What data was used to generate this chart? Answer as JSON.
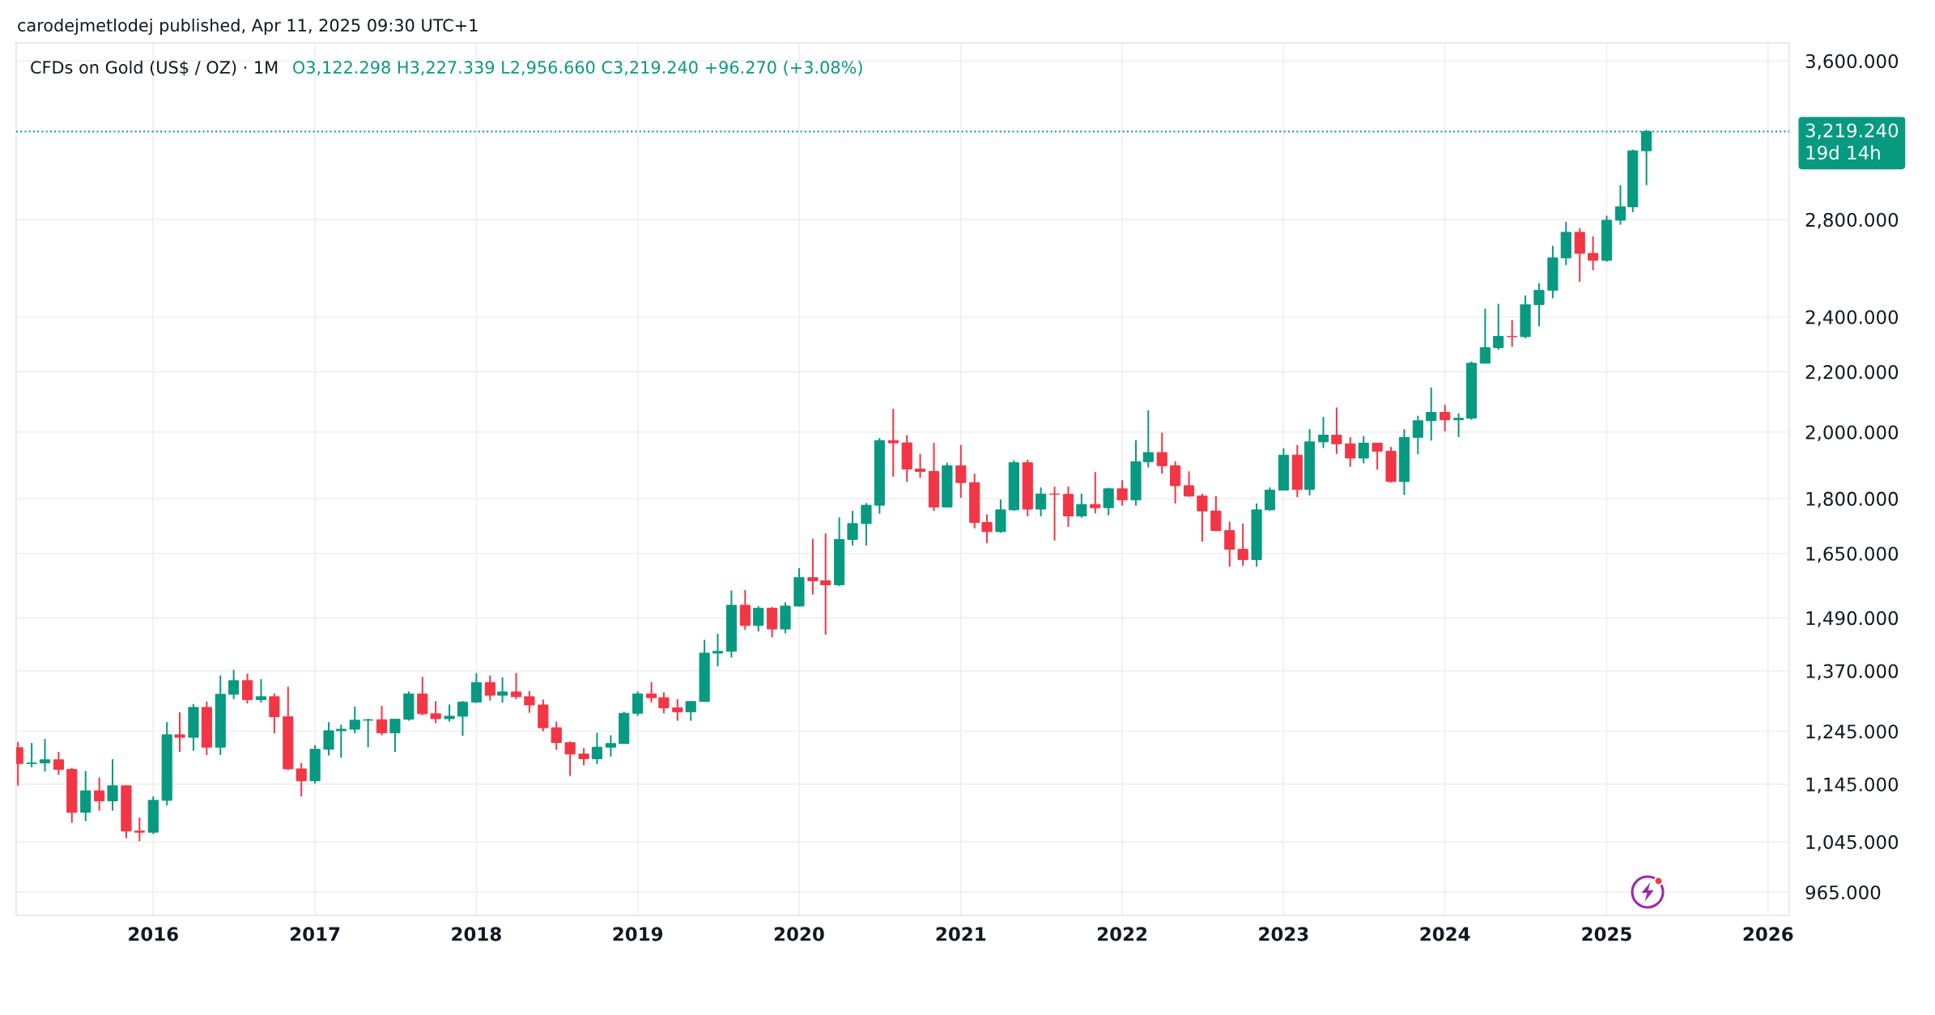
{
  "chart_data": {
    "type": "candlestick",
    "title": "CFDs on Gold (US$ / OZ) · 1M",
    "annotations": [
      "carodejmetlodej published, Apr 11, 2025 09:30 UTC+1",
      "O3,122.298 H3,227.339 L2,956.660 C3,219.240 +96.270 (+3.08%)"
    ],
    "x": [
      "2015-03",
      "2015-04",
      "2015-05",
      "2015-06",
      "2015-07",
      "2015-08",
      "2015-09",
      "2015-10",
      "2015-11",
      "2015-12",
      "2016-01",
      "2016-02",
      "2016-03",
      "2016-04",
      "2016-05",
      "2016-06",
      "2016-07",
      "2016-08",
      "2016-09",
      "2016-10",
      "2016-11",
      "2016-12",
      "2017-01",
      "2017-02",
      "2017-03",
      "2017-04",
      "2017-05",
      "2017-06",
      "2017-07",
      "2017-08",
      "2017-09",
      "2017-10",
      "2017-11",
      "2017-12",
      "2018-01",
      "2018-02",
      "2018-03",
      "2018-04",
      "2018-05",
      "2018-06",
      "2018-07",
      "2018-08",
      "2018-09",
      "2018-10",
      "2018-11",
      "2018-12",
      "2019-01",
      "2019-02",
      "2019-03",
      "2019-04",
      "2019-05",
      "2019-06",
      "2019-07",
      "2019-08",
      "2019-09",
      "2019-10",
      "2019-11",
      "2019-12",
      "2020-01",
      "2020-02",
      "2020-03",
      "2020-04",
      "2020-05",
      "2020-06",
      "2020-07",
      "2020-08",
      "2020-09",
      "2020-10",
      "2020-11",
      "2020-12",
      "2021-01",
      "2021-02",
      "2021-03",
      "2021-04",
      "2021-05",
      "2021-06",
      "2021-07",
      "2021-08",
      "2021-09",
      "2021-10",
      "2021-11",
      "2021-12",
      "2022-01",
      "2022-02",
      "2022-03",
      "2022-04",
      "2022-05",
      "2022-06",
      "2022-07",
      "2022-08",
      "2022-09",
      "2022-10",
      "2022-11",
      "2022-12",
      "2023-01",
      "2023-02",
      "2023-03",
      "2023-04",
      "2023-05",
      "2023-06",
      "2023-07",
      "2023-08",
      "2023-09",
      "2023-10",
      "2023-11",
      "2023-12",
      "2024-01",
      "2024-02",
      "2024-03",
      "2024-04",
      "2024-05",
      "2024-06",
      "2024-07",
      "2024-08",
      "2024-09",
      "2024-10",
      "2024-11",
      "2024-12",
      "2025-01",
      "2025-02",
      "2025-03",
      "2025-04"
    ],
    "ohlc": [
      [
        1213,
        1224,
        1142,
        1183
      ],
      [
        1183,
        1222,
        1176,
        1184
      ],
      [
        1184,
        1230,
        1168,
        1190
      ],
      [
        1190,
        1205,
        1162,
        1172
      ],
      [
        1172,
        1175,
        1077,
        1095
      ],
      [
        1095,
        1169,
        1080,
        1133
      ],
      [
        1133,
        1157,
        1098,
        1115
      ],
      [
        1115,
        1191,
        1098,
        1142
      ],
      [
        1142,
        1143,
        1051,
        1063
      ],
      [
        1063,
        1086,
        1046,
        1061
      ],
      [
        1061,
        1123,
        1058,
        1116
      ],
      [
        1116,
        1263,
        1107,
        1238
      ],
      [
        1238,
        1283,
        1205,
        1233
      ],
      [
        1233,
        1300,
        1207,
        1293
      ],
      [
        1293,
        1305,
        1199,
        1214
      ],
      [
        1214,
        1360,
        1199,
        1320
      ],
      [
        1320,
        1372,
        1310,
        1349
      ],
      [
        1349,
        1364,
        1301,
        1309
      ],
      [
        1309,
        1352,
        1303,
        1315
      ],
      [
        1315,
        1322,
        1241,
        1274
      ],
      [
        1274,
        1336,
        1171,
        1173
      ],
      [
        1173,
        1184,
        1123,
        1151
      ],
      [
        1151,
        1218,
        1146,
        1210
      ],
      [
        1210,
        1263,
        1198,
        1246
      ],
      [
        1246,
        1258,
        1194,
        1249
      ],
      [
        1249,
        1295,
        1241,
        1267
      ],
      [
        1267,
        1270,
        1214,
        1268
      ],
      [
        1268,
        1296,
        1237,
        1242
      ],
      [
        1242,
        1270,
        1205,
        1269
      ],
      [
        1269,
        1326,
        1266,
        1321
      ],
      [
        1321,
        1357,
        1277,
        1280
      ],
      [
        1280,
        1306,
        1261,
        1270
      ],
      [
        1270,
        1299,
        1264,
        1275
      ],
      [
        1275,
        1306,
        1236,
        1304
      ],
      [
        1304,
        1365,
        1302,
        1345
      ],
      [
        1345,
        1360,
        1307,
        1318
      ],
      [
        1318,
        1356,
        1303,
        1325
      ],
      [
        1325,
        1365,
        1310,
        1315
      ],
      [
        1315,
        1327,
        1282,
        1298
      ],
      [
        1298,
        1309,
        1245,
        1252
      ],
      [
        1252,
        1264,
        1209,
        1223
      ],
      [
        1223,
        1225,
        1160,
        1201
      ],
      [
        1201,
        1212,
        1180,
        1192
      ],
      [
        1192,
        1242,
        1182,
        1214
      ],
      [
        1214,
        1237,
        1196,
        1221
      ],
      [
        1221,
        1284,
        1221,
        1281
      ],
      [
        1281,
        1326,
        1276,
        1321
      ],
      [
        1321,
        1346,
        1303,
        1313
      ],
      [
        1313,
        1324,
        1281,
        1292
      ],
      [
        1292,
        1310,
        1266,
        1284
      ],
      [
        1284,
        1306,
        1266,
        1305
      ],
      [
        1305,
        1439,
        1305,
        1409
      ],
      [
        1409,
        1453,
        1380,
        1413
      ],
      [
        1413,
        1556,
        1399,
        1520
      ],
      [
        1520,
        1557,
        1462,
        1472
      ],
      [
        1472,
        1518,
        1458,
        1513
      ],
      [
        1513,
        1516,
        1445,
        1464
      ],
      [
        1464,
        1527,
        1454,
        1518
      ],
      [
        1518,
        1612,
        1517,
        1588
      ],
      [
        1588,
        1689,
        1546,
        1580
      ],
      [
        1580,
        1703,
        1451,
        1570
      ],
      [
        1570,
        1747,
        1567,
        1687
      ],
      [
        1687,
        1765,
        1671,
        1730
      ],
      [
        1730,
        1787,
        1671,
        1781
      ],
      [
        1781,
        1981,
        1757,
        1973
      ],
      [
        1973,
        2075,
        1863,
        1966
      ],
      [
        1966,
        1990,
        1848,
        1886
      ],
      [
        1886,
        1932,
        1860,
        1879
      ],
      [
        1879,
        1966,
        1765,
        1776
      ],
      [
        1776,
        1905,
        1775,
        1896
      ],
      [
        1896,
        1959,
        1802,
        1846
      ],
      [
        1846,
        1872,
        1717,
        1733
      ],
      [
        1733,
        1755,
        1677,
        1708
      ],
      [
        1708,
        1797,
        1705,
        1768
      ],
      [
        1768,
        1912,
        1765,
        1905
      ],
      [
        1905,
        1914,
        1750,
        1770
      ],
      [
        1770,
        1832,
        1750,
        1813
      ],
      [
        1813,
        1834,
        1684,
        1812
      ],
      [
        1812,
        1834,
        1721,
        1751
      ],
      [
        1751,
        1814,
        1746,
        1783
      ],
      [
        1783,
        1877,
        1758,
        1774
      ],
      [
        1774,
        1831,
        1753,
        1828
      ],
      [
        1828,
        1853,
        1780,
        1796
      ],
      [
        1796,
        1974,
        1780,
        1908
      ],
      [
        1908,
        2070,
        1891,
        1936
      ],
      [
        1936,
        1998,
        1872,
        1896
      ],
      [
        1896,
        1909,
        1786,
        1837
      ],
      [
        1837,
        1879,
        1805,
        1807
      ],
      [
        1807,
        1814,
        1681,
        1765
      ],
      [
        1765,
        1807,
        1709,
        1711
      ],
      [
        1711,
        1735,
        1616,
        1661
      ],
      [
        1661,
        1730,
        1618,
        1634
      ],
      [
        1634,
        1786,
        1616,
        1768
      ],
      [
        1768,
        1832,
        1765,
        1824
      ],
      [
        1824,
        1949,
        1823,
        1928
      ],
      [
        1928,
        1959,
        1804,
        1826
      ],
      [
        1826,
        2009,
        1809,
        1969
      ],
      [
        1969,
        2048,
        1950,
        1990
      ],
      [
        1990,
        2079,
        1932,
        1963
      ],
      [
        1963,
        1984,
        1893,
        1919
      ],
      [
        1919,
        1987,
        1903,
        1965
      ],
      [
        1965,
        1966,
        1884,
        1940
      ],
      [
        1940,
        1953,
        1846,
        1849
      ],
      [
        1849,
        2009,
        1810,
        1983
      ],
      [
        1983,
        2052,
        1931,
        2036
      ],
      [
        2036,
        2146,
        1973,
        2063
      ],
      [
        2063,
        2088,
        2002,
        2039
      ],
      [
        2039,
        2060,
        1984,
        2044
      ],
      [
        2044,
        2236,
        2039,
        2230
      ],
      [
        2230,
        2431,
        2229,
        2286
      ],
      [
        2286,
        2450,
        2278,
        2327
      ],
      [
        2327,
        2388,
        2289,
        2326
      ],
      [
        2326,
        2483,
        2320,
        2447
      ],
      [
        2447,
        2531,
        2365,
        2503
      ],
      [
        2503,
        2686,
        2472,
        2635
      ],
      [
        2635,
        2790,
        2605,
        2744
      ],
      [
        2744,
        2762,
        2537,
        2654
      ],
      [
        2654,
        2726,
        2584,
        2625
      ],
      [
        2625,
        2817,
        2619,
        2797
      ],
      [
        2797,
        2956,
        2777,
        2857
      ],
      [
        2857,
        3128,
        2833,
        3122.298
      ],
      [
        3122.298,
        3227.339,
        2956.66,
        3219.24
      ]
    ],
    "colors": [
      "#f23645",
      "#089981",
      "#089981",
      "#f23645",
      "#f23645",
      "#089981",
      "#f23645",
      "#089981",
      "#f23645",
      "#f23645",
      "#089981",
      "#089981",
      "#f23645",
      "#089981",
      "#f23645",
      "#089981",
      "#089981",
      "#f23645",
      "#089981",
      "#f23645",
      "#f23645",
      "#f23645",
      "#089981",
      "#089981",
      "#089981",
      "#089981",
      "#089981",
      "#f23645",
      "#089981",
      "#089981",
      "#f23645",
      "#f23645",
      "#089981",
      "#089981",
      "#089981",
      "#f23645",
      "#089981",
      "#f23645",
      "#f23645",
      "#f23645",
      "#f23645",
      "#f23645",
      "#f23645",
      "#089981",
      "#089981",
      "#089981",
      "#089981",
      "#f23645",
      "#f23645",
      "#f23645",
      "#089981",
      "#089981",
      "#089981",
      "#089981",
      "#f23645",
      "#089981",
      "#f23645",
      "#089981",
      "#089981",
      "#f23645",
      "#f23645",
      "#089981",
      "#089981",
      "#089981",
      "#089981",
      "#f23645",
      "#f23645",
      "#f23645",
      "#f23645",
      "#089981",
      "#f23645",
      "#f23645",
      "#f23645",
      "#089981",
      "#089981",
      "#f23645",
      "#089981",
      "#f23645",
      "#f23645",
      "#089981",
      "#f23645",
      "#089981",
      "#f23645",
      "#089981",
      "#089981",
      "#f23645",
      "#f23645",
      "#f23645",
      "#f23645",
      "#f23645",
      "#f23645",
      "#f23645",
      "#089981",
      "#089981",
      "#089981",
      "#f23645",
      "#089981",
      "#089981",
      "#f23645",
      "#f23645",
      "#089981",
      "#f23645",
      "#f23645",
      "#089981",
      "#089981",
      "#089981",
      "#f23645",
      "#089981",
      "#089981",
      "#089981",
      "#089981",
      "#f23645",
      "#089981",
      "#089981",
      "#089981",
      "#089981",
      "#f23645",
      "#f23645",
      "#089981",
      "#089981",
      "#089981",
      "#089981"
    ],
    "log": true,
    "xlim": [
      "2015-02-25",
      "2026-02-18"
    ],
    "xticks": [
      "2016",
      "2017",
      "2018",
      "2019",
      "2020",
      "2021",
      "2022",
      "2023",
      "2024",
      "2025",
      "2026"
    ],
    "ylim": [
      930,
      3704
    ],
    "yticks": [
      {
        "value": 965,
        "label": "965.000"
      },
      {
        "value": 1045,
        "label": "1,045.000"
      },
      {
        "value": 1145,
        "label": "1,145.000"
      },
      {
        "value": 1245,
        "label": "1,245.000"
      },
      {
        "value": 1370,
        "label": "1,370.000"
      },
      {
        "value": 1490,
        "label": "1,490.000"
      },
      {
        "value": 1650,
        "label": "1,650.000"
      },
      {
        "value": 1800,
        "label": "1,800.000"
      },
      {
        "value": 2000,
        "label": "2,000.000"
      },
      {
        "value": 2200,
        "label": "2,200.000"
      },
      {
        "value": 2400,
        "label": "2,400.000"
      },
      {
        "value": 2800,
        "label": "2,800.000"
      },
      {
        "value": 3600,
        "label": "3,600.000"
      }
    ],
    "grid": true,
    "ref_lines": [
      {
        "axis": "y",
        "value": 3219.24,
        "label": "3,219.240\n19d 14h",
        "color": "#089981",
        "line_style": "dotted"
      }
    ]
  }
}
